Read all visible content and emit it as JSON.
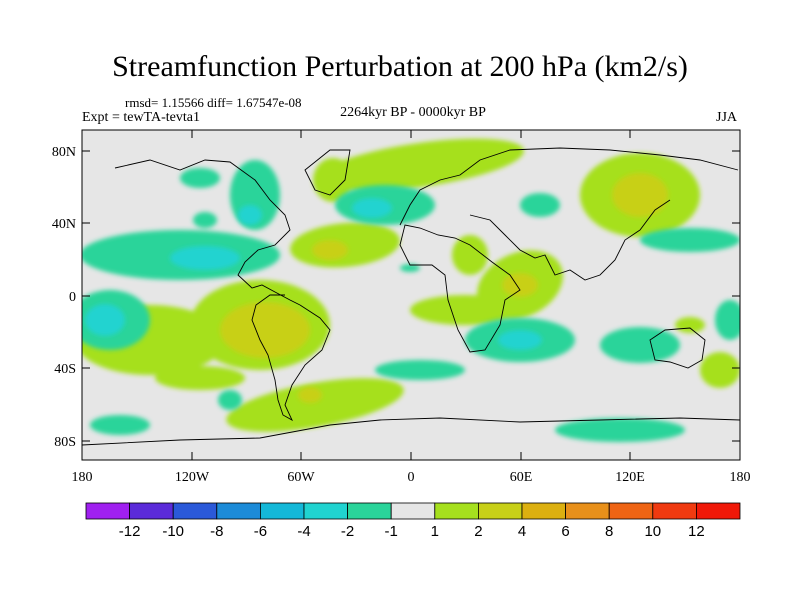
{
  "title": "Streamfunction Perturbation at 200 hPa (km2/s)",
  "stats_text": "rmsd= 1.15566 diff= 1.67547e-08",
  "expt_text": "Expt = tewTA-tevta1",
  "period_text": "2264kyr BP - 0000kyr BP",
  "season_text": "JJA",
  "lat_ticks": [
    "80N",
    "40N",
    "0",
    "40S",
    "80S"
  ],
  "lon_ticks": [
    "180",
    "120W",
    "60W",
    "0",
    "60E",
    "120E",
    "180"
  ],
  "colorbar": {
    "labels": [
      "-12",
      "-10",
      "-8",
      "-6",
      "-4",
      "-2",
      "-1",
      "1",
      "2",
      "4",
      "6",
      "8",
      "10",
      "12"
    ],
    "colors": [
      "#a020f0",
      "#5b2bd9",
      "#2b59d9",
      "#1c8bd8",
      "#14b8d8",
      "#20d3d0",
      "#2ad49a",
      "#e6e6e6",
      "#a6e01e",
      "#c8d018",
      "#dcb010",
      "#e8901a",
      "#ee6414",
      "#f03a10",
      "#f01808"
    ]
  }
}
